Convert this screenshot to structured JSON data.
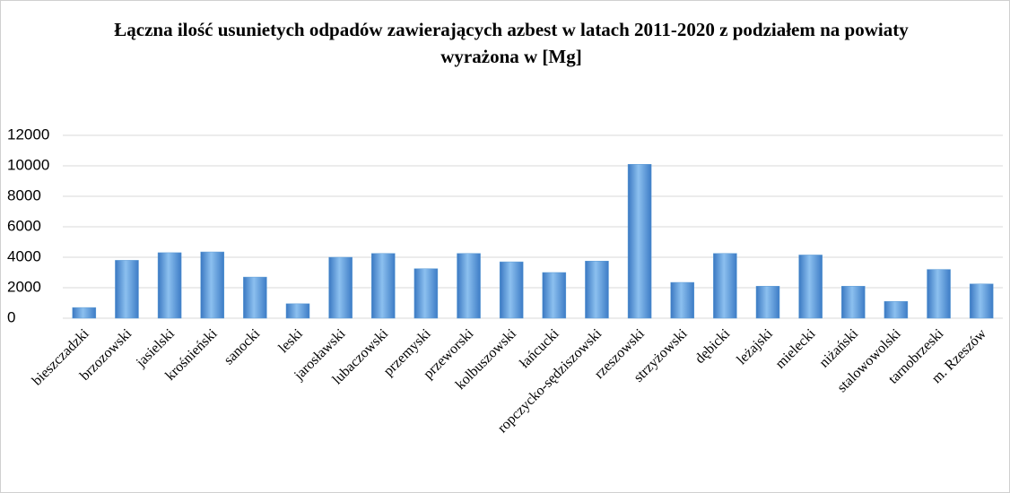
{
  "chart_data": {
    "type": "bar",
    "title": "Łączna ilość usunietych odpadów zawierających azbest w latach 2011-2020 z podziałem na powiaty wyrażona w [Mg]",
    "categories": [
      "bieszczadzki",
      "brzozowski",
      "jasielski",
      "krośnieński",
      "sanocki",
      "leski",
      "jarosławski",
      "lubaczowski",
      "przemyski",
      "przeworski",
      "kolbuszowski",
      "łańcucki",
      "ropczycko-sędziszowski",
      "rzeszowski",
      "strzyżowski",
      "dębicki",
      "leżajski",
      "mielecki",
      "niżański",
      "stalowowolski",
      "tarnobrzeski",
      "m. Rzeszów"
    ],
    "values": [
      700,
      3800,
      4300,
      4350,
      2700,
      950,
      4000,
      4250,
      3250,
      4250,
      3700,
      3000,
      3750,
      10100,
      2350,
      4250,
      2100,
      4150,
      2100,
      1100,
      3200,
      2250
    ],
    "color": "#5b9bd5",
    "ylim": [
      0,
      12000
    ],
    "yticks": [
      0,
      2000,
      4000,
      6000,
      8000,
      10000,
      12000
    ],
    "grid": true
  }
}
